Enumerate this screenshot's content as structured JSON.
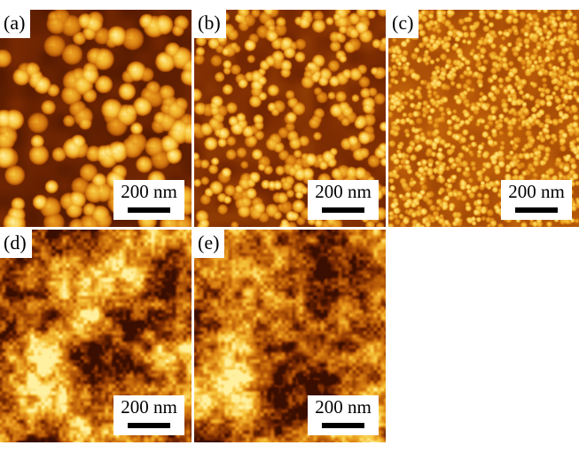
{
  "figure": {
    "panels": [
      {
        "id": "a",
        "label": "(a)",
        "scale_bar_text": "200 nm",
        "morphology": "large-islands"
      },
      {
        "id": "b",
        "label": "(b)",
        "scale_bar_text": "200 nm",
        "morphology": "medium-islands"
      },
      {
        "id": "c",
        "label": "(c)",
        "scale_bar_text": "200 nm",
        "morphology": "small-grains"
      },
      {
        "id": "d",
        "label": "(d)",
        "scale_bar_text": "200 nm",
        "morphology": "rough-continuous"
      },
      {
        "id": "e",
        "label": "(e)",
        "scale_bar_text": "200 nm",
        "morphology": "smooth-continuous"
      }
    ],
    "colormap": [
      "#3a0e00",
      "#7a2a02",
      "#b85a08",
      "#e08a16",
      "#f7c43a",
      "#fff0a0"
    ]
  }
}
